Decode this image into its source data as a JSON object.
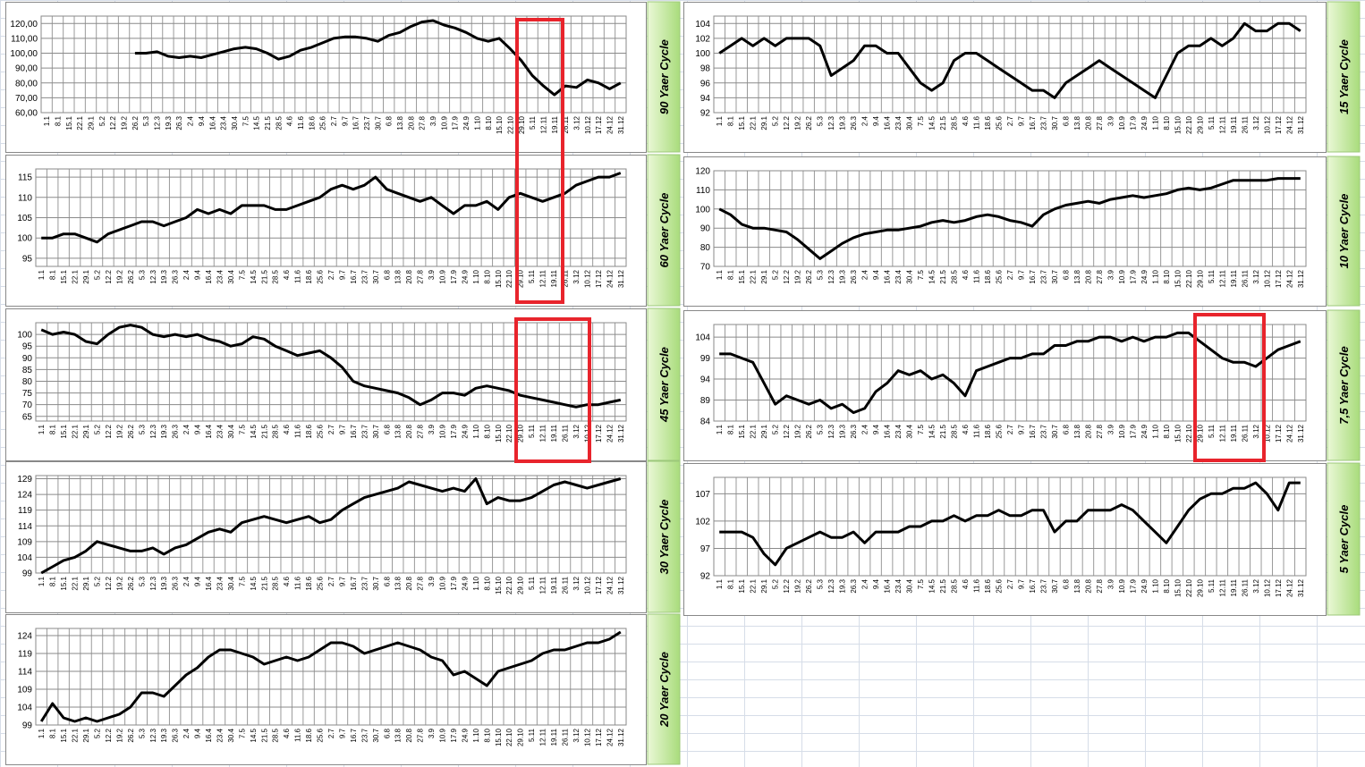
{
  "chart_data": [
    {
      "type": "line",
      "title": "90 Yaer Cycle",
      "categories": [
        "1.1",
        "8.1",
        "15.1",
        "22.1",
        "29.1",
        "5.2",
        "12.2",
        "19.2",
        "26.2",
        "5.3",
        "12.3",
        "19.3",
        "26.3",
        "2.4",
        "9.4",
        "16.4",
        "23.4",
        "30.4",
        "7.5",
        "14.5",
        "21.5",
        "28.5",
        "4.6",
        "11.6",
        "18.6",
        "25.6",
        "2.7",
        "9.7",
        "16.7",
        "23.7",
        "30.7",
        "6.8",
        "13.8",
        "20.8",
        "27.8",
        "3.9",
        "10.9",
        "17.9",
        "24.9",
        "1.10",
        "8.10",
        "15.10",
        "22.10",
        "29.10",
        "5.11",
        "12.11",
        "19.11",
        "26.11",
        "3.12",
        "10.12",
        "17.12",
        "24.12",
        "31.12"
      ],
      "values": [
        null,
        null,
        null,
        null,
        null,
        null,
        null,
        null,
        100,
        100,
        101,
        98,
        97,
        98,
        97,
        99,
        101,
        103,
        104,
        103,
        100,
        96,
        98,
        102,
        104,
        107,
        110,
        111,
        111,
        110,
        108,
        112,
        114,
        118,
        121,
        122,
        119,
        117,
        114,
        110,
        108,
        110,
        103,
        95,
        85,
        78,
        72,
        78,
        77,
        82,
        80,
        76,
        80
      ],
      "color": "#000000",
      "ylim": [
        60,
        125
      ],
      "yticks": [
        {
          "value": 60,
          "label": "60,00"
        },
        {
          "value": 70,
          "label": "70,00"
        },
        {
          "value": 80,
          "label": "80,00"
        },
        {
          "value": 90,
          "label": "90,00"
        },
        {
          "value": 100,
          "label": "100,00"
        },
        {
          "value": 110,
          "label": "110,00"
        },
        {
          "value": 120,
          "label": "120,00"
        }
      ],
      "grid": true
    },
    {
      "type": "line",
      "title": "60 Yaer Cycle",
      "categories": [
        "1.1",
        "8.1",
        "15.1",
        "22.1",
        "29.1",
        "5.2",
        "12.2",
        "19.2",
        "26.2",
        "5.3",
        "12.3",
        "19.3",
        "26.3",
        "2.4",
        "9.4",
        "16.4",
        "23.4",
        "30.4",
        "7.5",
        "14.5",
        "21.5",
        "28.5",
        "4.6",
        "11.6",
        "18.6",
        "25.6",
        "2.7",
        "9.7",
        "16.7",
        "23.7",
        "30.7",
        "6.8",
        "13.8",
        "20.8",
        "27.8",
        "3.9",
        "10.9",
        "17.9",
        "24.9",
        "1.10",
        "8.10",
        "15.10",
        "22.10",
        "29.10",
        "5.11",
        "12.11",
        "19.11",
        "26.11",
        "3.12",
        "10.12",
        "17.12",
        "24.12",
        "31.12"
      ],
      "values": [
        100,
        100,
        101,
        101,
        100,
        99,
        101,
        102,
        103,
        104,
        104,
        103,
        104,
        105,
        107,
        106,
        107,
        106,
        108,
        108,
        108,
        107,
        107,
        108,
        109,
        110,
        112,
        113,
        112,
        113,
        115,
        112,
        111,
        110,
        109,
        110,
        108,
        106,
        108,
        108,
        109,
        107,
        110,
        111,
        110,
        109,
        110,
        111,
        113,
        114,
        115,
        115,
        116
      ],
      "color": "#000000",
      "ylim": [
        93,
        117
      ],
      "yticks": [
        95,
        100,
        105,
        110,
        115
      ],
      "grid": true
    },
    {
      "type": "line",
      "title": "45 Yaer Cycle",
      "categories": [
        "1.1",
        "8.1",
        "15.1",
        "22.1",
        "29.1",
        "5.2",
        "12.2",
        "19.2",
        "26.2",
        "5.3",
        "12.3",
        "19.3",
        "26.3",
        "2.4",
        "9.4",
        "16.4",
        "23.4",
        "30.4",
        "7.5",
        "14.5",
        "21.5",
        "28.5",
        "4.6",
        "11.6",
        "18.6",
        "25.6",
        "2.7",
        "9.7",
        "16.7",
        "23.7",
        "30.7",
        "6.8",
        "13.8",
        "20.8",
        "27.8",
        "3.9",
        "10.9",
        "17.9",
        "24.9",
        "1.10",
        "8.10",
        "15.10",
        "22.10",
        "29.10",
        "5.11",
        "12.11",
        "19.11",
        "26.11",
        "3.12",
        "10.12",
        "17.12",
        "24.12",
        "31.12"
      ],
      "values": [
        102,
        100,
        101,
        100,
        97,
        96,
        100,
        103,
        104,
        103,
        100,
        99,
        100,
        99,
        100,
        98,
        97,
        95,
        96,
        99,
        98,
        95,
        93,
        91,
        92,
        93,
        90,
        86,
        80,
        78,
        77,
        76,
        75,
        73,
        70,
        72,
        75,
        75,
        74,
        77,
        78,
        77,
        76,
        74,
        73,
        72,
        71,
        70,
        69,
        70,
        70,
        71,
        72
      ],
      "color": "#000000",
      "ylim": [
        63,
        105
      ],
      "yticks": [
        65,
        70,
        75,
        80,
        85,
        90,
        95,
        100
      ],
      "grid": true
    },
    {
      "type": "line",
      "title": "30 Yaer Cycle",
      "categories": [
        "1.1",
        "8.1",
        "15.1",
        "22.1",
        "29.1",
        "5.2",
        "12.2",
        "19.2",
        "26.2",
        "5.3",
        "12.3",
        "19.3",
        "26.3",
        "2.4",
        "9.4",
        "16.4",
        "23.4",
        "30.4",
        "7.5",
        "14.5",
        "21.5",
        "28.5",
        "4.6",
        "11.6",
        "18.6",
        "25.6",
        "2.7",
        "9.7",
        "16.7",
        "23.7",
        "30.7",
        "6.8",
        "13.8",
        "20.8",
        "27.8",
        "3.9",
        "10.9",
        "17.9",
        "24.9",
        "1.10",
        "8.10",
        "15.10",
        "22.10",
        "29.10",
        "5.11",
        "12.11",
        "19.11",
        "26.11",
        "3.12",
        "10.12",
        "17.12",
        "24.12",
        "31.12"
      ],
      "values": [
        99,
        101,
        103,
        104,
        106,
        109,
        108,
        107,
        106,
        106,
        107,
        105,
        107,
        108,
        110,
        112,
        113,
        112,
        115,
        116,
        117,
        116,
        115,
        116,
        117,
        115,
        116,
        119,
        121,
        123,
        124,
        125,
        126,
        128,
        127,
        126,
        125,
        126,
        125,
        129,
        121,
        123,
        122,
        122,
        123,
        125,
        127,
        128,
        127,
        126,
        127,
        128,
        129
      ],
      "color": "#000000",
      "ylim": [
        99,
        130
      ],
      "yticks": [
        99,
        104,
        109,
        114,
        119,
        124,
        129
      ],
      "grid": true
    },
    {
      "type": "line",
      "title": "20 Yaer Cycle",
      "categories": [
        "1.1",
        "8.1",
        "15.1",
        "22.1",
        "29.1",
        "5.2",
        "12.2",
        "19.2",
        "26.2",
        "5.3",
        "12.3",
        "19.3",
        "26.3",
        "2.4",
        "9.4",
        "16.4",
        "23.4",
        "30.4",
        "7.5",
        "14.5",
        "21.5",
        "28.5",
        "4.6",
        "11.6",
        "18.6",
        "25.6",
        "2.7",
        "9.7",
        "16.7",
        "23.7",
        "30.7",
        "6.8",
        "13.8",
        "20.8",
        "27.8",
        "3.9",
        "10.9",
        "17.9",
        "24.9",
        "1.10",
        "8.10",
        "15.10",
        "22.10",
        "29.10",
        "5.11",
        "12.11",
        "19.11",
        "26.11",
        "3.12",
        "10.12",
        "17.12",
        "24.12",
        "31.12"
      ],
      "values": [
        100,
        105,
        101,
        100,
        101,
        100,
        101,
        102,
        104,
        108,
        108,
        107,
        110,
        113,
        115,
        118,
        120,
        120,
        119,
        118,
        116,
        117,
        118,
        117,
        118,
        120,
        122,
        122,
        121,
        119,
        120,
        121,
        122,
        121,
        120,
        118,
        117,
        113,
        114,
        112,
        110,
        114,
        115,
        116,
        117,
        119,
        120,
        120,
        121,
        122,
        122,
        123,
        125
      ],
      "color": "#000000",
      "ylim": [
        99,
        126
      ],
      "yticks": [
        99,
        104,
        109,
        114,
        119,
        124
      ],
      "grid": true
    },
    {
      "type": "line",
      "title": "15 Yaer Cycle",
      "categories": [
        "1.1",
        "8.1",
        "15.1",
        "22.1",
        "29.1",
        "5.2",
        "12.2",
        "19.2",
        "26.2",
        "5.3",
        "12.3",
        "19.3",
        "26.3",
        "2.4",
        "9.4",
        "16.4",
        "23.4",
        "30.4",
        "7.5",
        "14.5",
        "21.5",
        "28.5",
        "4.6",
        "11.6",
        "18.6",
        "25.6",
        "2.7",
        "9.7",
        "16.7",
        "23.7",
        "30.7",
        "6.8",
        "13.8",
        "20.8",
        "27.8",
        "3.9",
        "10.9",
        "17.9",
        "24.9",
        "1.10",
        "8.10",
        "15.10",
        "22.10",
        "29.10",
        "5.11",
        "12.11",
        "19.11",
        "26.11",
        "3.12",
        "10.12",
        "17.12",
        "24.12",
        "31.12"
      ],
      "values": [
        100,
        101,
        102,
        101,
        102,
        101,
        102,
        102,
        102,
        101,
        97,
        98,
        99,
        101,
        101,
        100,
        100,
        98,
        96,
        95,
        96,
        99,
        100,
        100,
        99,
        98,
        97,
        96,
        95,
        95,
        94,
        96,
        97,
        98,
        99,
        98,
        97,
        96,
        95,
        94,
        97,
        100,
        101,
        101,
        102,
        101,
        102,
        104,
        103,
        103,
        104,
        104,
        103
      ],
      "color": "#000000",
      "ylim": [
        92,
        105
      ],
      "yticks": [
        92,
        94,
        96,
        98,
        100,
        102,
        104
      ],
      "grid": true
    },
    {
      "type": "line",
      "title": "10 Yaer Cycle",
      "categories": [
        "1.1",
        "8.1",
        "15.1",
        "22.1",
        "29.1",
        "5.2",
        "12.2",
        "19.2",
        "26.2",
        "5.3",
        "12.3",
        "19.3",
        "26.3",
        "2.4",
        "9.4",
        "16.4",
        "23.4",
        "30.4",
        "7.5",
        "14.5",
        "21.5",
        "28.5",
        "4.6",
        "11.6",
        "18.6",
        "25.6",
        "2.7",
        "9.7",
        "16.7",
        "23.7",
        "30.7",
        "6.8",
        "13.8",
        "20.8",
        "27.8",
        "3.9",
        "10.9",
        "17.9",
        "24.9",
        "1.10",
        "8.10",
        "15.10",
        "22.10",
        "29.10",
        "5.11",
        "12.11",
        "19.11",
        "26.11",
        "3.12",
        "10.12",
        "17.12",
        "24.12",
        "31.12"
      ],
      "values": [
        100,
        97,
        92,
        90,
        90,
        89,
        88,
        84,
        79,
        74,
        78,
        82,
        85,
        87,
        88,
        89,
        89,
        90,
        91,
        93,
        94,
        93,
        94,
        96,
        97,
        96,
        94,
        93,
        91,
        97,
        100,
        102,
        103,
        104,
        103,
        105,
        106,
        107,
        106,
        107,
        108,
        110,
        111,
        110,
        111,
        113,
        115,
        115,
        115,
        115,
        116,
        116,
        116
      ],
      "color": "#000000",
      "ylim": [
        70,
        120
      ],
      "yticks": [
        70,
        80,
        90,
        100,
        110,
        120
      ],
      "grid": true
    },
    {
      "type": "line",
      "title": "7,5 Yaer Cycle",
      "categories": [
        "1.1",
        "8.1",
        "15.1",
        "22.1",
        "29.1",
        "5.2",
        "12.2",
        "19.2",
        "26.2",
        "5.3",
        "12.3",
        "19.3",
        "26.3",
        "2.4",
        "9.4",
        "16.4",
        "23.4",
        "30.4",
        "7.5",
        "14.5",
        "21.5",
        "28.5",
        "4.6",
        "11.6",
        "18.6",
        "25.6",
        "2.7",
        "9.7",
        "16.7",
        "23.7",
        "30.7",
        "6.8",
        "13.8",
        "20.8",
        "27.8",
        "3.9",
        "10.9",
        "17.9",
        "24.9",
        "1.10",
        "8.10",
        "15.10",
        "22.10",
        "29.10",
        "5.11",
        "12.11",
        "19.11",
        "26.11",
        "3.12",
        "10.12",
        "17.12",
        "24.12",
        "31.12"
      ],
      "values": [
        100,
        100,
        99,
        98,
        93,
        88,
        90,
        89,
        88,
        89,
        87,
        88,
        86,
        87,
        91,
        93,
        96,
        95,
        96,
        94,
        95,
        93,
        90,
        96,
        97,
        98,
        99,
        99,
        100,
        100,
        102,
        102,
        103,
        103,
        104,
        104,
        103,
        104,
        103,
        104,
        104,
        105,
        105,
        103,
        101,
        99,
        98,
        98,
        97,
        99,
        101,
        102,
        103
      ],
      "color": "#000000",
      "ylim": [
        84,
        107
      ],
      "yticks": [
        84,
        89,
        94,
        99,
        104
      ],
      "grid": true
    },
    {
      "type": "line",
      "title": "5 Yaer Cycle",
      "categories": [
        "1.1",
        "8.1",
        "15.1",
        "22.1",
        "29.1",
        "5.2",
        "12.2",
        "19.2",
        "26.2",
        "5.3",
        "12.3",
        "19.3",
        "26.3",
        "2.4",
        "9.4",
        "16.4",
        "23.4",
        "30.4",
        "7.5",
        "14.5",
        "21.5",
        "28.5",
        "4.6",
        "11.6",
        "18.6",
        "25.6",
        "2.7",
        "9.7",
        "16.7",
        "23.7",
        "30.7",
        "6.8",
        "13.8",
        "20.8",
        "27.8",
        "3.9",
        "10.9",
        "17.9",
        "24.9",
        "1.10",
        "8.10",
        "15.10",
        "22.10",
        "29.10",
        "5.11",
        "12.11",
        "19.11",
        "26.11",
        "3.12",
        "10.12",
        "17.12",
        "24.12",
        "31.12"
      ],
      "values": [
        100,
        100,
        100,
        99,
        96,
        94,
        97,
        98,
        99,
        100,
        99,
        99,
        100,
        98,
        100,
        100,
        100,
        101,
        101,
        102,
        102,
        103,
        102,
        103,
        103,
        104,
        103,
        103,
        104,
        104,
        100,
        102,
        102,
        104,
        104,
        104,
        105,
        104,
        102,
        100,
        98,
        101,
        104,
        106,
        107,
        107,
        108,
        108,
        109,
        107,
        104,
        109,
        109
      ],
      "color": "#000000",
      "ylim": [
        92,
        110
      ],
      "yticks": [
        92,
        97,
        102,
        107
      ],
      "grid": true
    }
  ]
}
